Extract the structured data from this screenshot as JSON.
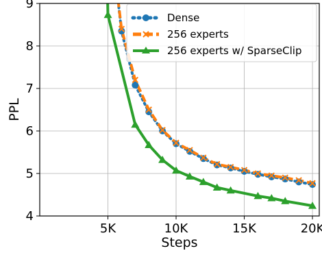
{
  "chart_data": {
    "type": "line",
    "xlabel": "Steps",
    "ylabel": "PPL",
    "xlim": [
      0,
      20500
    ],
    "ylim": [
      4,
      9
    ],
    "x_ticks": [
      5000,
      10000,
      15000,
      20000
    ],
    "x_tick_labels": [
      "5K",
      "10K",
      "15K",
      "20K"
    ],
    "y_ticks": [
      4,
      5,
      6,
      7,
      8,
      9
    ],
    "y_tick_labels": [
      "4",
      "5",
      "6",
      "7",
      "8",
      "9"
    ],
    "grid": true,
    "legend_position": "top-right",
    "series": [
      {
        "name": "Dense",
        "color": "#1f77b4",
        "style": "dotted",
        "marker": "circle",
        "x": [
          6000,
          7000,
          8000,
          9000,
          10000,
          11000,
          12000,
          13000,
          14000,
          15000,
          16000,
          17000,
          18000,
          19000,
          20000
        ],
        "y": [
          8.35,
          7.08,
          6.45,
          6.0,
          5.7,
          5.52,
          5.35,
          5.2,
          5.13,
          5.05,
          4.98,
          4.92,
          4.87,
          4.8,
          4.74
        ]
      },
      {
        "name": "256 experts",
        "color": "#ff7f0e",
        "style": "dashed",
        "marker": "x",
        "x": [
          6000,
          7000,
          8000,
          9000,
          10000,
          11000,
          12000,
          13000,
          14000,
          15000,
          16000,
          17000,
          18000,
          19000,
          20000
        ],
        "y": [
          8.4,
          7.2,
          6.5,
          6.02,
          5.72,
          5.55,
          5.37,
          5.22,
          5.15,
          5.08,
          5.0,
          4.95,
          4.9,
          4.84,
          4.77
        ]
      },
      {
        "name": "256 experts w/ SparseClip",
        "color": "#2ca02c",
        "style": "solid",
        "marker": "triangle",
        "x": [
          5000,
          7000,
          8000,
          9000,
          10000,
          11000,
          12000,
          13000,
          14000,
          16000,
          17000,
          18000,
          20000
        ],
        "y": [
          8.73,
          6.15,
          5.67,
          5.32,
          5.07,
          4.93,
          4.8,
          4.67,
          4.6,
          4.47,
          4.42,
          4.35,
          4.24
        ]
      }
    ]
  },
  "legend": {
    "items": [
      "Dense",
      "256 experts",
      "256 experts w/ SparseClip"
    ]
  }
}
